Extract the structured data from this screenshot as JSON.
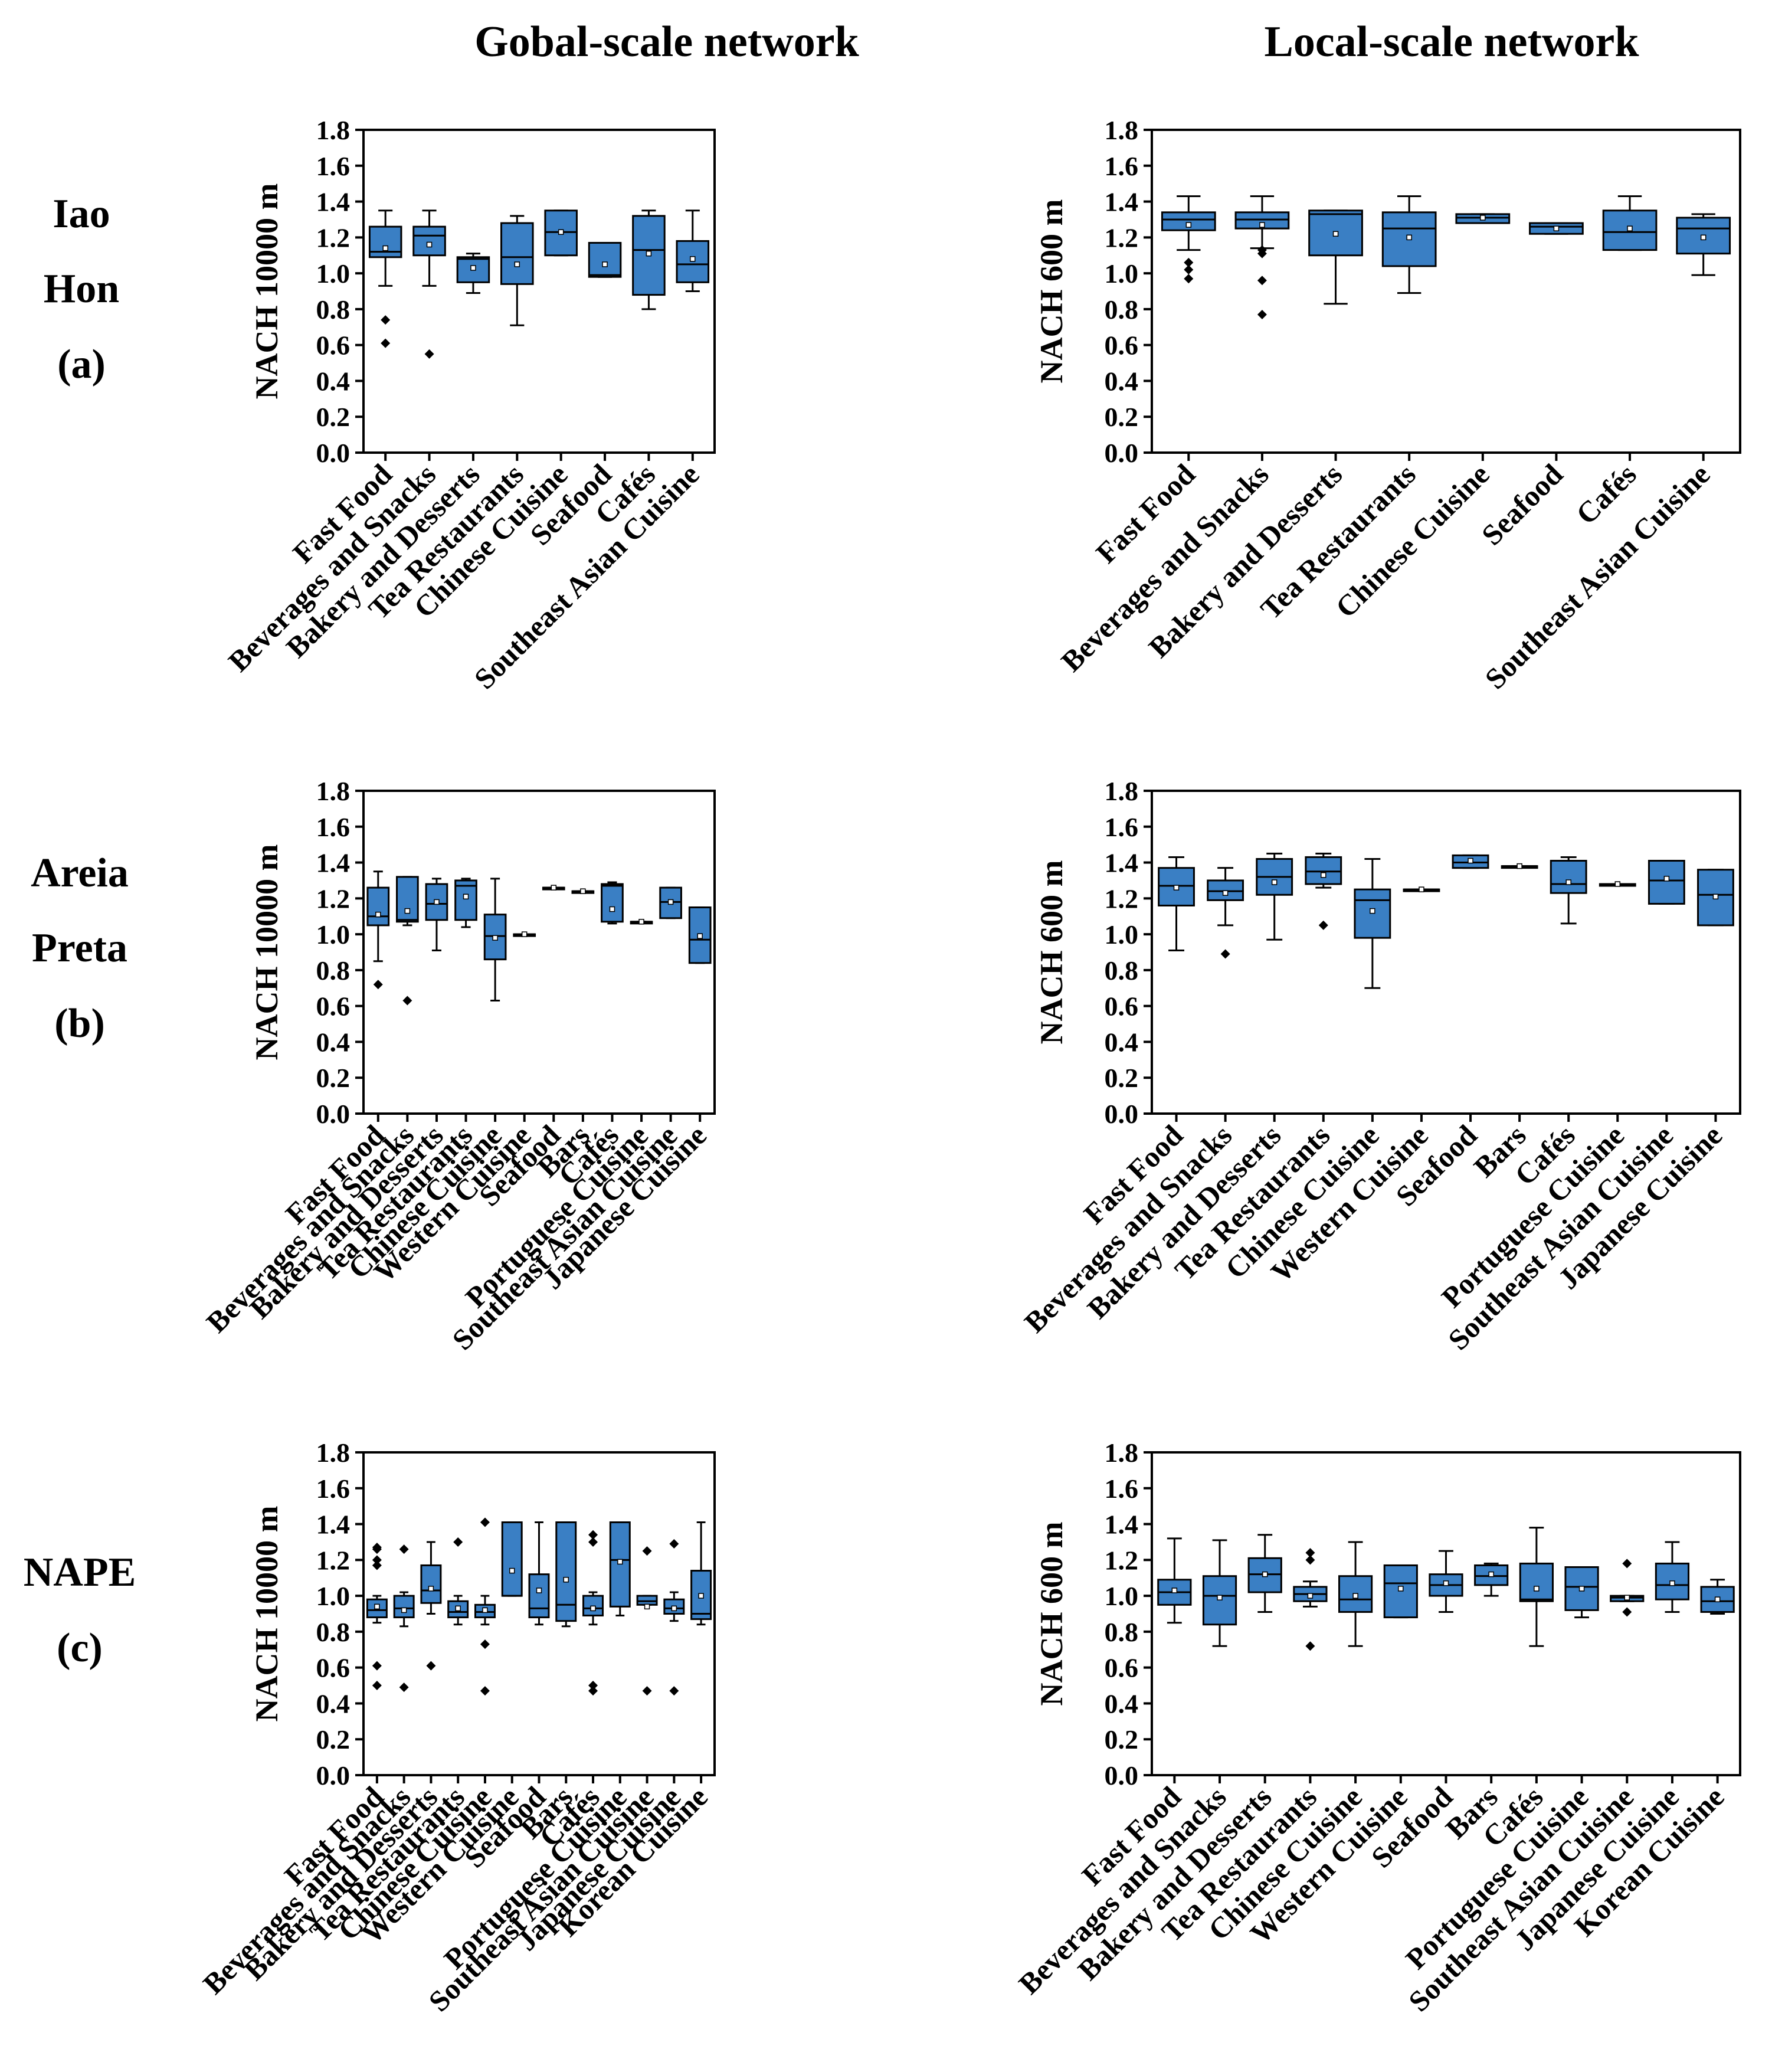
{
  "column_titles": [
    "Gobal-scale network",
    "Local-scale network"
  ],
  "row_labels": [
    [
      "Iao",
      "Hon",
      "(a)"
    ],
    [
      "Areia",
      "Preta",
      "(b)"
    ],
    [
      "NAPE",
      "(c)"
    ]
  ],
  "colors": {
    "box_fill": "#3a7fc4",
    "stroke": "#000000"
  },
  "chart_data": [
    {
      "type": "box",
      "row": 0,
      "col": 0,
      "ylabel": "NACH 10000 m",
      "ylim": [
        0,
        1.8
      ],
      "yticks": [
        "0.0",
        "0.2",
        "0.4",
        "0.6",
        "0.8",
        "1.0",
        "1.2",
        "1.4",
        "1.6",
        "1.8"
      ],
      "categories": [
        "Fast Food",
        "Beverages and Snacks",
        "Bakery and Desserts",
        "Tea Restaurants",
        "Chinese Cuisine",
        "Seafood",
        "Cafés",
        "Southeast Asian Cuisine"
      ],
      "boxes": [
        {
          "whislo": 0.93,
          "q1": 1.09,
          "med": 1.12,
          "q3": 1.26,
          "whishi": 1.35,
          "mean": 1.14,
          "fliers": [
            0.74,
            0.61
          ]
        },
        {
          "whislo": 0.93,
          "q1": 1.1,
          "med": 1.21,
          "q3": 1.26,
          "whishi": 1.35,
          "mean": 1.16,
          "fliers": [
            0.55
          ]
        },
        {
          "whislo": 0.89,
          "q1": 0.95,
          "med": 1.08,
          "q3": 1.09,
          "whishi": 1.11,
          "mean": 1.03,
          "fliers": []
        },
        {
          "whislo": 0.71,
          "q1": 0.94,
          "med": 1.09,
          "q3": 1.28,
          "whishi": 1.32,
          "mean": 1.05,
          "fliers": []
        },
        {
          "whislo": 1.1,
          "q1": 1.1,
          "med": 1.23,
          "q3": 1.35,
          "whishi": 1.35,
          "mean": 1.23,
          "fliers": []
        },
        {
          "whislo": 0.98,
          "q1": 0.98,
          "med": 0.99,
          "q3": 1.17,
          "whishi": 1.17,
          "mean": 1.05,
          "fliers": []
        },
        {
          "whislo": 0.8,
          "q1": 0.88,
          "med": 1.13,
          "q3": 1.32,
          "whishi": 1.35,
          "mean": 1.11,
          "fliers": []
        },
        {
          "whislo": 0.9,
          "q1": 0.95,
          "med": 1.05,
          "q3": 1.18,
          "whishi": 1.35,
          "mean": 1.08,
          "fliers": []
        }
      ]
    },
    {
      "type": "box",
      "row": 0,
      "col": 1,
      "ylabel": "NACH 600 m",
      "ylim": [
        0,
        1.8
      ],
      "yticks": [
        "0.0",
        "0.2",
        "0.4",
        "0.6",
        "0.8",
        "1.0",
        "1.2",
        "1.4",
        "1.6",
        "1.8"
      ],
      "categories": [
        "Fast Food",
        "Beverages and Snacks",
        "Bakery and Desserts",
        "Tea Restaurants",
        "Chinese Cuisine",
        "Seafood",
        "Cafés",
        "Southeast Asian Cuisine"
      ],
      "boxes": [
        {
          "whislo": 1.13,
          "q1": 1.24,
          "med": 1.3,
          "q3": 1.34,
          "whishi": 1.43,
          "mean": 1.27,
          "fliers": [
            1.06,
            1.02,
            0.97
          ]
        },
        {
          "whislo": 1.14,
          "q1": 1.25,
          "med": 1.3,
          "q3": 1.34,
          "whishi": 1.43,
          "mean": 1.27,
          "fliers": [
            1.13,
            1.11,
            0.96,
            0.77
          ]
        },
        {
          "whislo": 0.83,
          "q1": 1.1,
          "med": 1.33,
          "q3": 1.35,
          "whishi": 1.35,
          "mean": 1.22,
          "fliers": []
        },
        {
          "whislo": 0.89,
          "q1": 1.04,
          "med": 1.25,
          "q3": 1.34,
          "whishi": 1.43,
          "mean": 1.2,
          "fliers": []
        },
        {
          "whislo": 1.28,
          "q1": 1.28,
          "med": 1.31,
          "q3": 1.33,
          "whishi": 1.33,
          "mean": 1.31,
          "fliers": []
        },
        {
          "whislo": 1.22,
          "q1": 1.22,
          "med": 1.26,
          "q3": 1.28,
          "whishi": 1.28,
          "mean": 1.25,
          "fliers": []
        },
        {
          "whislo": 1.13,
          "q1": 1.13,
          "med": 1.23,
          "q3": 1.35,
          "whishi": 1.43,
          "mean": 1.25,
          "fliers": []
        },
        {
          "whislo": 0.99,
          "q1": 1.11,
          "med": 1.25,
          "q3": 1.31,
          "whishi": 1.33,
          "mean": 1.2,
          "fliers": []
        }
      ]
    },
    {
      "type": "box",
      "row": 1,
      "col": 0,
      "ylabel": "NACH 10000 m",
      "ylim": [
        0,
        1.8
      ],
      "yticks": [
        "0.0",
        "0.2",
        "0.4",
        "0.6",
        "0.8",
        "1.0",
        "1.2",
        "1.4",
        "1.6",
        "1.8"
      ],
      "categories": [
        "Fast Food",
        "Beverages and Snacks",
        "Bakery and Desserts",
        "Tea Restaurants",
        "Chinese Cuisine",
        "Western Cuisine",
        "Seafood",
        "Bars",
        "Cafés",
        "Portuguese Cuisine",
        "Southeast Asian Cuisine",
        "Japanese Cuisine"
      ],
      "boxes": [
        {
          "whislo": 0.85,
          "q1": 1.05,
          "med": 1.1,
          "q3": 1.26,
          "whishi": 1.35,
          "mean": 1.11,
          "fliers": [
            0.72
          ]
        },
        {
          "whislo": 1.05,
          "q1": 1.07,
          "med": 1.08,
          "q3": 1.32,
          "whishi": 1.32,
          "mean": 1.13,
          "fliers": [
            0.63
          ]
        },
        {
          "whislo": 0.91,
          "q1": 1.08,
          "med": 1.17,
          "q3": 1.28,
          "whishi": 1.31,
          "mean": 1.18,
          "fliers": []
        },
        {
          "whislo": 1.04,
          "q1": 1.08,
          "med": 1.27,
          "q3": 1.3,
          "whishi": 1.31,
          "mean": 1.21,
          "fliers": []
        },
        {
          "whislo": 0.63,
          "q1": 0.86,
          "med": 0.99,
          "q3": 1.11,
          "whishi": 1.31,
          "mean": 0.98,
          "fliers": []
        },
        {
          "whislo": 1.0,
          "q1": 1.0,
          "med": 1.0,
          "q3": 1.0,
          "whishi": 1.0,
          "mean": 1.0,
          "fliers": []
        },
        {
          "whislo": 1.26,
          "q1": 1.26,
          "med": 1.26,
          "q3": 1.26,
          "whishi": 1.26,
          "mean": 1.26,
          "fliers": []
        },
        {
          "whislo": 1.24,
          "q1": 1.24,
          "med": 1.24,
          "q3": 1.24,
          "whishi": 1.24,
          "mean": 1.24,
          "fliers": []
        },
        {
          "whislo": 1.06,
          "q1": 1.07,
          "med": 1.27,
          "q3": 1.28,
          "whishi": 1.29,
          "mean": 1.14,
          "fliers": []
        },
        {
          "whislo": 1.07,
          "q1": 1.07,
          "med": 1.07,
          "q3": 1.07,
          "whishi": 1.07,
          "mean": 1.07,
          "fliers": []
        },
        {
          "whislo": 1.09,
          "q1": 1.09,
          "med": 1.18,
          "q3": 1.26,
          "whishi": 1.26,
          "mean": 1.18,
          "fliers": []
        },
        {
          "whislo": 0.84,
          "q1": 0.84,
          "med": 0.97,
          "q3": 1.15,
          "whishi": 1.15,
          "mean": 0.99,
          "fliers": []
        }
      ]
    },
    {
      "type": "box",
      "row": 1,
      "col": 1,
      "ylabel": "NACH 600 m",
      "ylim": [
        0,
        1.8
      ],
      "yticks": [
        "0.0",
        "0.2",
        "0.4",
        "0.6",
        "0.8",
        "1.0",
        "1.2",
        "1.4",
        "1.6",
        "1.8"
      ],
      "categories": [
        "Fast Food",
        "Beverages and Snacks",
        "Bakery and Desserts",
        "Tea Restaurants",
        "Chinese Cuisine",
        "Western Cuisine",
        "Seafood",
        "Bars",
        "Cafés",
        "Portuguese Cuisine",
        "Southeast Asian Cuisine",
        "Japanese Cuisine"
      ],
      "boxes": [
        {
          "whislo": 0.91,
          "q1": 1.16,
          "med": 1.27,
          "q3": 1.37,
          "whishi": 1.43,
          "mean": 1.26,
          "fliers": []
        },
        {
          "whislo": 1.05,
          "q1": 1.19,
          "med": 1.24,
          "q3": 1.3,
          "whishi": 1.37,
          "mean": 1.23,
          "fliers": [
            0.89
          ]
        },
        {
          "whislo": 0.97,
          "q1": 1.22,
          "med": 1.32,
          "q3": 1.42,
          "whishi": 1.45,
          "mean": 1.29,
          "fliers": []
        },
        {
          "whislo": 1.26,
          "q1": 1.28,
          "med": 1.35,
          "q3": 1.43,
          "whishi": 1.45,
          "mean": 1.33,
          "fliers": [
            1.05
          ]
        },
        {
          "whislo": 0.7,
          "q1": 0.98,
          "med": 1.19,
          "q3": 1.25,
          "whishi": 1.42,
          "mean": 1.13,
          "fliers": []
        },
        {
          "whislo": 1.25,
          "q1": 1.25,
          "med": 1.25,
          "q3": 1.25,
          "whishi": 1.25,
          "mean": 1.25,
          "fliers": []
        },
        {
          "whislo": 1.37,
          "q1": 1.37,
          "med": 1.4,
          "q3": 1.44,
          "whishi": 1.44,
          "mean": 1.41,
          "fliers": []
        },
        {
          "whislo": 1.38,
          "q1": 1.38,
          "med": 1.38,
          "q3": 1.38,
          "whishi": 1.38,
          "mean": 1.38,
          "fliers": []
        },
        {
          "whislo": 1.06,
          "q1": 1.23,
          "med": 1.28,
          "q3": 1.41,
          "whishi": 1.43,
          "mean": 1.29,
          "fliers": []
        },
        {
          "whislo": 1.28,
          "q1": 1.28,
          "med": 1.28,
          "q3": 1.28,
          "whishi": 1.28,
          "mean": 1.28,
          "fliers": []
        },
        {
          "whislo": 1.17,
          "q1": 1.17,
          "med": 1.3,
          "q3": 1.41,
          "whishi": 1.41,
          "mean": 1.31,
          "fliers": []
        },
        {
          "whislo": 1.05,
          "q1": 1.05,
          "med": 1.22,
          "q3": 1.36,
          "whishi": 1.36,
          "mean": 1.21,
          "fliers": []
        }
      ]
    },
    {
      "type": "box",
      "row": 2,
      "col": 0,
      "ylabel": "NACH 10000 m",
      "ylim": [
        0,
        1.8
      ],
      "yticks": [
        "0.0",
        "0.2",
        "0.4",
        "0.6",
        "0.8",
        "1.0",
        "1.2",
        "1.4",
        "1.6",
        "1.8"
      ],
      "categories": [
        "Fast Food",
        "Beverages and Snacks",
        "Bakery and Desserts",
        "Tea Restaurants",
        "Chinese Cuisine",
        "Western Cuisine",
        "Seafood",
        "Bars",
        "Cafés",
        "Portuguese Cuisine",
        "Southeast Asian Cuisine",
        "Japanese Cuisine",
        "Korean Cuisine"
      ],
      "boxes": [
        {
          "whislo": 0.85,
          "q1": 0.88,
          "med": 0.92,
          "q3": 0.98,
          "whishi": 1.0,
          "mean": 0.94,
          "fliers": [
            1.27,
            1.26,
            1.2,
            1.17,
            0.61,
            0.5
          ]
        },
        {
          "whislo": 0.83,
          "q1": 0.88,
          "med": 0.93,
          "q3": 1.0,
          "whishi": 1.02,
          "mean": 0.92,
          "fliers": [
            1.26,
            0.49
          ]
        },
        {
          "whislo": 0.9,
          "q1": 0.96,
          "med": 1.03,
          "q3": 1.17,
          "whishi": 1.3,
          "mean": 1.04,
          "fliers": [
            0.61
          ]
        },
        {
          "whislo": 0.84,
          "q1": 0.88,
          "med": 0.91,
          "q3": 0.97,
          "whishi": 1.0,
          "mean": 0.93,
          "fliers": [
            1.3
          ]
        },
        {
          "whislo": 0.84,
          "q1": 0.88,
          "med": 0.91,
          "q3": 0.95,
          "whishi": 1.0,
          "mean": 0.92,
          "fliers": [
            1.41,
            0.73,
            0.47
          ]
        },
        {
          "whislo": 1.0,
          "q1": 1.0,
          "med": 1.0,
          "q3": 1.41,
          "whishi": 1.41,
          "mean": 1.14,
          "fliers": []
        },
        {
          "whislo": 0.84,
          "q1": 0.88,
          "med": 0.93,
          "q3": 1.12,
          "whishi": 1.41,
          "mean": 1.03,
          "fliers": []
        },
        {
          "whislo": 0.83,
          "q1": 0.86,
          "med": 0.95,
          "q3": 1.41,
          "whishi": 1.41,
          "mean": 1.09,
          "fliers": []
        },
        {
          "whislo": 0.84,
          "q1": 0.89,
          "med": 0.93,
          "q3": 1.0,
          "whishi": 1.02,
          "mean": 0.93,
          "fliers": [
            1.34,
            1.3,
            0.5,
            0.47
          ]
        },
        {
          "whislo": 0.89,
          "q1": 0.94,
          "med": 1.2,
          "q3": 1.41,
          "whishi": 1.41,
          "mean": 1.19,
          "fliers": []
        },
        {
          "whislo": 0.95,
          "q1": 0.95,
          "med": 0.97,
          "q3": 1.0,
          "whishi": 1.0,
          "mean": 0.94,
          "fliers": [
            1.25,
            0.47
          ]
        },
        {
          "whislo": 0.86,
          "q1": 0.9,
          "med": 0.93,
          "q3": 0.98,
          "whishi": 1.02,
          "mean": 0.93,
          "fliers": [
            1.29,
            0.47
          ]
        },
        {
          "whislo": 0.84,
          "q1": 0.87,
          "med": 0.9,
          "q3": 1.14,
          "whishi": 1.41,
          "mean": 1.0,
          "fliers": []
        }
      ]
    },
    {
      "type": "box",
      "row": 2,
      "col": 1,
      "ylabel": "NACH 600 m",
      "ylim": [
        0,
        1.8
      ],
      "yticks": [
        "0.0",
        "0.2",
        "0.4",
        "0.6",
        "0.8",
        "1.0",
        "1.2",
        "1.4",
        "1.6",
        "1.8"
      ],
      "categories": [
        "Fast Food",
        "Beverages and Snacks",
        "Bakery and Desserts",
        "Tea Restaurants",
        "Chinese Cuisine",
        "Western Cuisine",
        "Seafood",
        "Bars",
        "Cafés",
        "Portuguese Cuisine",
        "Southeast Asian Cuisine",
        "Japanese Cuisine",
        "Korean Cuisine"
      ],
      "boxes": [
        {
          "whislo": 0.85,
          "q1": 0.95,
          "med": 1.02,
          "q3": 1.09,
          "whishi": 1.32,
          "mean": 1.03,
          "fliers": []
        },
        {
          "whislo": 0.72,
          "q1": 0.84,
          "med": 1.0,
          "q3": 1.11,
          "whishi": 1.31,
          "mean": 0.99,
          "fliers": []
        },
        {
          "whislo": 0.91,
          "q1": 1.02,
          "med": 1.12,
          "q3": 1.21,
          "whishi": 1.34,
          "mean": 1.12,
          "fliers": []
        },
        {
          "whislo": 0.94,
          "q1": 0.97,
          "med": 1.01,
          "q3": 1.05,
          "whishi": 1.08,
          "mean": 1.0,
          "fliers": [
            1.24,
            1.2,
            0.72
          ]
        },
        {
          "whislo": 0.72,
          "q1": 0.91,
          "med": 0.98,
          "q3": 1.11,
          "whishi": 1.3,
          "mean": 1.0,
          "fliers": []
        },
        {
          "whislo": 0.88,
          "q1": 0.88,
          "med": 1.07,
          "q3": 1.17,
          "whishi": 1.17,
          "mean": 1.04,
          "fliers": []
        },
        {
          "whislo": 0.91,
          "q1": 1.0,
          "med": 1.06,
          "q3": 1.12,
          "whishi": 1.25,
          "mean": 1.07,
          "fliers": []
        },
        {
          "whislo": 1.0,
          "q1": 1.06,
          "med": 1.11,
          "q3": 1.17,
          "whishi": 1.18,
          "mean": 1.12,
          "fliers": []
        },
        {
          "whislo": 0.72,
          "q1": 0.97,
          "med": 0.98,
          "q3": 1.18,
          "whishi": 1.38,
          "mean": 1.04,
          "fliers": []
        },
        {
          "whislo": 0.88,
          "q1": 0.92,
          "med": 1.05,
          "q3": 1.16,
          "whishi": 1.16,
          "mean": 1.04,
          "fliers": []
        },
        {
          "whislo": 0.97,
          "q1": 0.97,
          "med": 0.99,
          "q3": 1.0,
          "whishi": 1.0,
          "mean": 0.99,
          "fliers": [
            1.18,
            0.91
          ]
        },
        {
          "whislo": 0.91,
          "q1": 0.98,
          "med": 1.06,
          "q3": 1.18,
          "whishi": 1.3,
          "mean": 1.07,
          "fliers": []
        },
        {
          "whislo": 0.9,
          "q1": 0.91,
          "med": 0.97,
          "q3": 1.05,
          "whishi": 1.09,
          "mean": 0.98,
          "fliers": []
        }
      ]
    }
  ]
}
